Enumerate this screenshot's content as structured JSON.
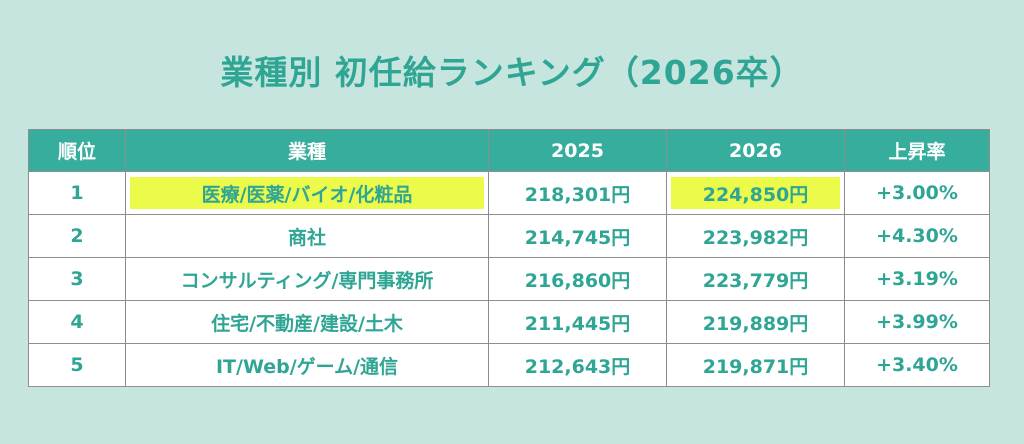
{
  "title": "業種別 初任給ランキング（2026卒）",
  "colors": {
    "background": "#c6e5df",
    "header": "#36ad9d",
    "text": "#2fa594",
    "highlight": "#ecfb4a"
  },
  "chart_data": {
    "type": "table",
    "title": "業種別 初任給ランキング（2026卒）",
    "columns": [
      "順位",
      "業種",
      "2025",
      "2026",
      "上昇率"
    ],
    "rows": [
      {
        "rank": "1",
        "industry": "医療/医薬/バイオ/化粧品",
        "y2025": "218,301円",
        "y2026": "224,850円",
        "rate": "+3.00%",
        "highlight": true
      },
      {
        "rank": "2",
        "industry": "商社",
        "y2025": "214,745円",
        "y2026": "223,982円",
        "rate": "+4.30%",
        "highlight": false
      },
      {
        "rank": "3",
        "industry": "コンサルティング/専門事務所",
        "y2025": "216,860円",
        "y2026": "223,779円",
        "rate": "+3.19%",
        "highlight": false
      },
      {
        "rank": "4",
        "industry": "住宅/不動産/建設/土木",
        "y2025": "211,445円",
        "y2026": "219,889円",
        "rate": "+3.99%",
        "highlight": false
      },
      {
        "rank": "5",
        "industry": "IT/Web/ゲーム/通信",
        "y2025": "212,643円",
        "y2026": "219,871円",
        "rate": "+3.40%",
        "highlight": false
      }
    ]
  }
}
